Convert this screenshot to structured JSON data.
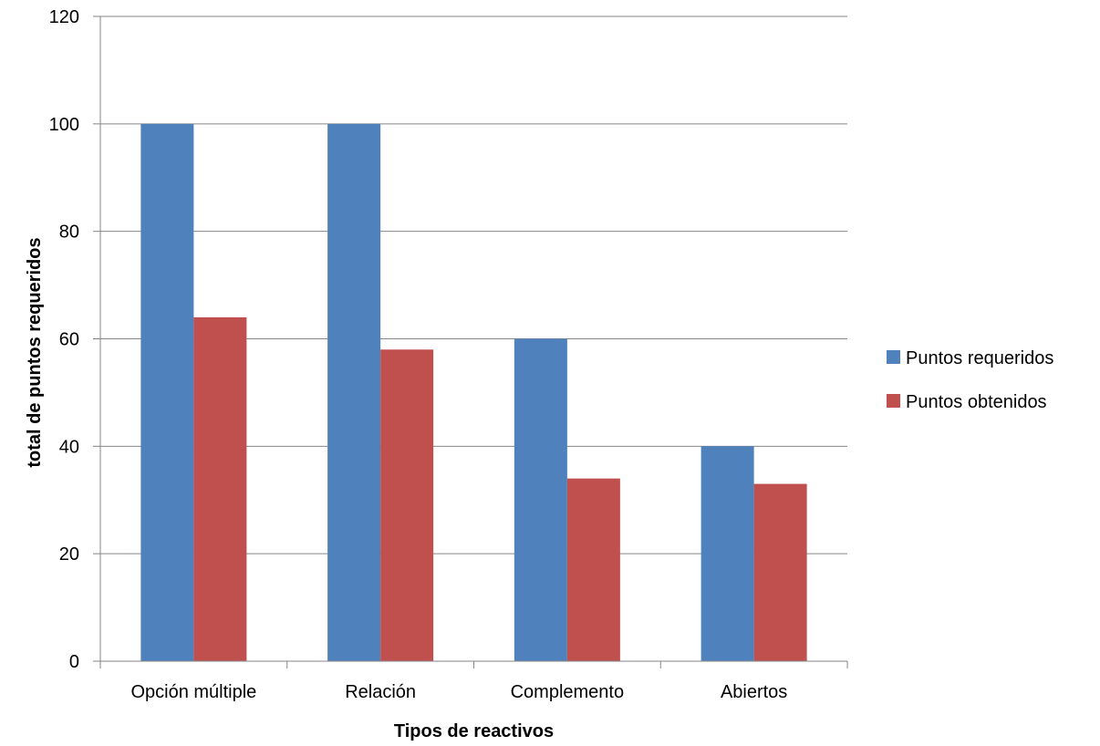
{
  "chart_data": {
    "type": "bar",
    "title": "",
    "xlabel": "Tipos de reactivos",
    "ylabel": "total de puntos requeridos",
    "categories": [
      "Opción múltiple",
      "Relación",
      "Complemento",
      "Abiertos"
    ],
    "series": [
      {
        "name": "Puntos requeridos",
        "color": "#4F81BD",
        "values": [
          100,
          100,
          60,
          40
        ]
      },
      {
        "name": "Puntos obtenidos",
        "color": "#C0504D",
        "values": [
          64,
          58,
          34,
          33
        ]
      }
    ],
    "ylim": [
      0,
      120
    ],
    "yticks": [
      "0",
      "20",
      "40",
      "60",
      "80",
      "100",
      "120"
    ],
    "grid": true,
    "legend_position": "right"
  }
}
